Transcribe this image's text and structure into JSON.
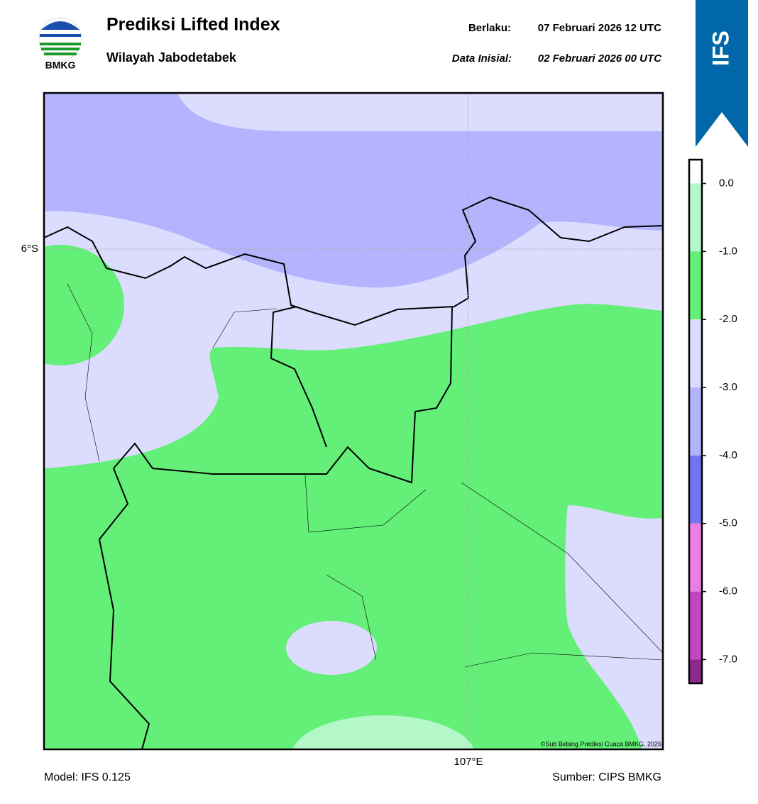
{
  "header": {
    "logo_text": "BMKG",
    "title": "Prediksi Lifted Index",
    "subtitle": "Wilayah Jabodetabek",
    "valid_label": "Berlaku:",
    "valid_time": "07 Februari 2026 12 UTC",
    "init_label": "Data Inisial:",
    "init_time": "02 Februari 2026 00 UTC",
    "model_badge": "IFS"
  },
  "map": {
    "lat_label": "6°S",
    "lon_label": "107°E",
    "credit": "©Sub Bidang Prediksi Cuaca BMKG, 2026"
  },
  "colorbar": {
    "lim": [
      -7.35,
      0.35
    ],
    "colors": [
      "#ffffff",
      "#b4f7c8",
      "#64ef78",
      "#dcdcfe",
      "#b4b4fe",
      "#7373f0",
      "#ea7ee2",
      "#c447c0",
      "#8e2a8e"
    ],
    "ticks": [
      {
        "value": 0,
        "label": "0.0"
      },
      {
        "value": -1,
        "label": "-1.0"
      },
      {
        "value": -2,
        "label": "-2.0"
      },
      {
        "value": -3,
        "label": "-3.0"
      },
      {
        "value": -4,
        "label": "-4.0"
      },
      {
        "value": -5,
        "label": "-5.0"
      },
      {
        "value": -6,
        "label": "-6.0"
      },
      {
        "value": -7,
        "label": "-7.0"
      }
    ]
  },
  "footer": {
    "model": "Model: IFS 0.125",
    "source": "Sumber: CIPS BMKG"
  }
}
